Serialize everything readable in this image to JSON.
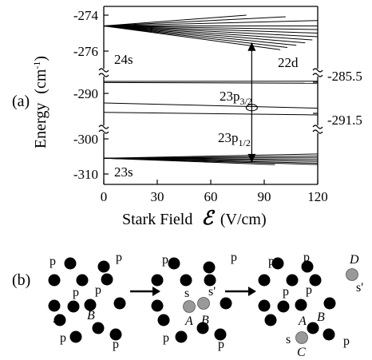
{
  "panel_labels": {
    "a": "(a)",
    "b": "(b)"
  },
  "chart_data": {
    "type": "line",
    "xlabel_parts": {
      "prefix": "Stark Field",
      "symbol": "ℰ",
      "suffix": "(V/cm)"
    },
    "ylabel": "Energy",
    "ylabel_unit": "(cm",
    "ylabel_unit_sup": "-1",
    "ylabel_unit_close": ")",
    "x_ticks": [
      "0",
      "30",
      "60",
      "90",
      "120"
    ],
    "x_range": [
      0,
      120
    ],
    "y_ticks_left": [
      "-274",
      "-276",
      "-290",
      "-300",
      "-310"
    ],
    "y_ticks_right": [
      "-285.5",
      "-291.5"
    ],
    "axis_break": true,
    "level_labels": {
      "s24": "24s",
      "d22": "22d",
      "p32_main": "23p",
      "p32_sub": "3/2",
      "p12_main": "23p",
      "p12_sub": "1/2",
      "s23": "23s"
    },
    "manifolds": {
      "top_fan": {
        "y_range": [
          -276.4,
          -273.6
        ],
        "origin": -274.6,
        "end_values_at_120": [
          -273.7,
          -274.0,
          -274.3,
          -274.6,
          -274.8,
          -275.0,
          -275.2,
          -275.4,
          -275.6,
          -275.8,
          -276.0,
          -276.2
        ],
        "end_x": [
          80,
          102,
          120,
          120,
          120,
          120,
          120,
          117,
          113,
          108,
          103,
          99
        ]
      },
      "d_band": {
        "y_range": [
          -285.9,
          -285.1
        ],
        "values_at_120": [
          -285.3,
          -285.7
        ]
      },
      "p32_band": {
        "y_range": [
          -290.8,
          -288.8
        ],
        "start": -289.5,
        "end_at_120": -290.5
      },
      "p12_band": {
        "y_range": [
          -292.1,
          -290.9
        ],
        "values": [
          [
            0,
            -291.3
          ],
          [
            120,
            -291.8
          ]
        ]
      },
      "bottom_fan": {
        "y_range": [
          -311,
          -302
        ],
        "origin": -305.5,
        "end_values_at_120": [
          -304.3,
          -304.9,
          -305.4,
          -305.9,
          -306.4,
          -306.9,
          -307.3,
          -307.8
        ],
        "end_x": [
          120,
          120,
          120,
          120,
          120,
          120,
          120,
          96
        ]
      }
    },
    "arrow": {
      "x": 83,
      "from": -275.5,
      "to": -306.8,
      "marker_at": -290.4
    }
  },
  "diagram": {
    "row_label": "(b)",
    "p_label": "p",
    "s_label": "s",
    "s_prime_label": "s'",
    "A_label": "A",
    "B_label": "B",
    "C_label": "C",
    "D_label": "D"
  },
  "colors": {
    "ink": "#000000",
    "gray_atom": "#999999"
  }
}
